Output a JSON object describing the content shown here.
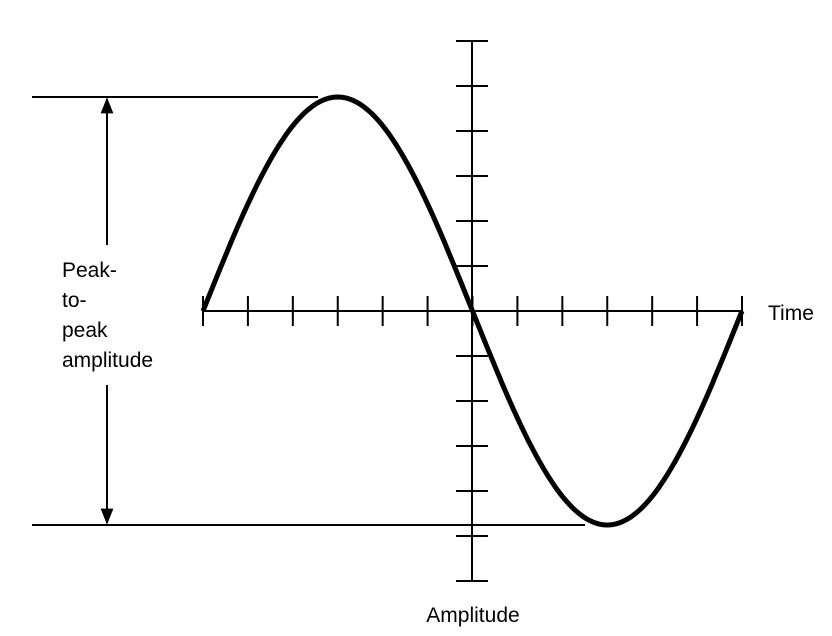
{
  "labels": {
    "x_axis": "Time",
    "y_axis": "Amplitude",
    "peak_to_peak": [
      "Peak-",
      "to-",
      "peak",
      "amplitude"
    ]
  },
  "colors": {
    "stroke": "#000000",
    "background": "#ffffff"
  },
  "wave": {
    "type": "sine",
    "cycles": 1,
    "starts_rising": true
  }
}
